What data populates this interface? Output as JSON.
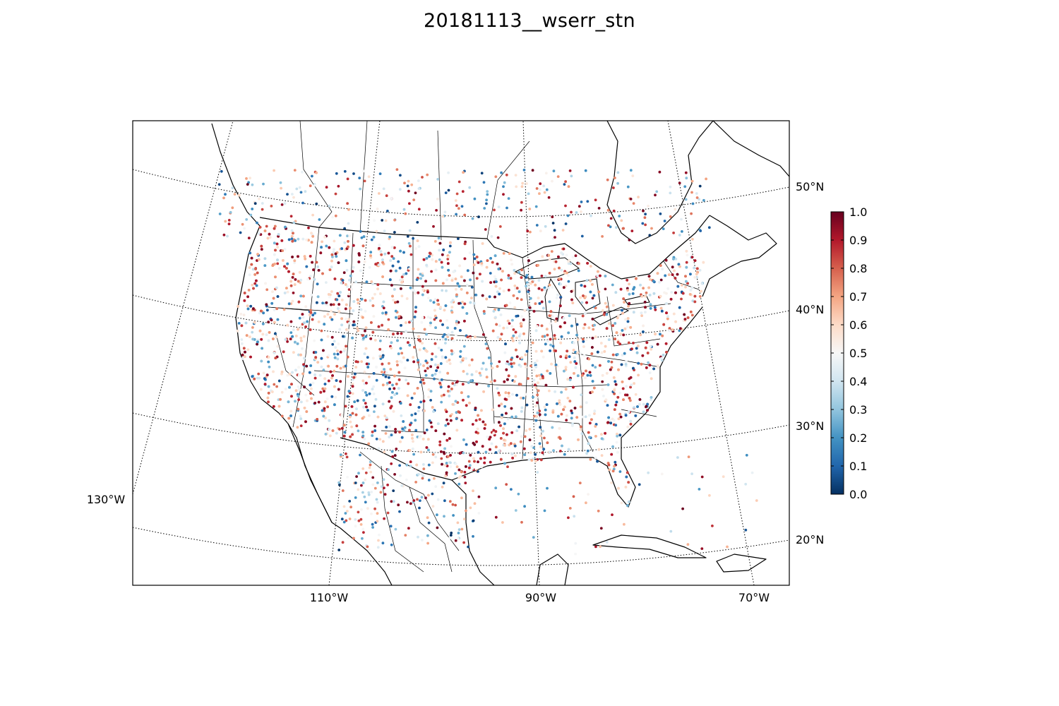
{
  "title": "20181113__wserr_stn",
  "map": {
    "lon_labels": [
      "110°W",
      "90°W",
      "70°W"
    ],
    "lon_label_left": "130°W",
    "lat_labels": [
      "50°N",
      "40°N",
      "30°N",
      "20°N"
    ],
    "coastline_color": "#000000",
    "graticule_style": "dotted",
    "station_count_estimate": 6000
  },
  "colorbar": {
    "colormap": "RdBu_r",
    "min": 0.0,
    "max": 1.0,
    "ticks": [
      "0.0",
      "0.1",
      "0.2",
      "0.3",
      "0.4",
      "0.5",
      "0.6",
      "0.7",
      "0.8",
      "0.9",
      "1.0"
    ],
    "stops": [
      "#053061",
      "#2166ac",
      "#4393c3",
      "#92c5de",
      "#d1e5f0",
      "#f7f7f7",
      "#fddbc7",
      "#f4a582",
      "#d6604d",
      "#b2182b",
      "#67001f"
    ]
  },
  "chart_data": {
    "type": "scatter",
    "title": "20181113__wserr_stn",
    "value_range": [
      0.0,
      1.0
    ],
    "x_ticks": [
      "110°W",
      "90°W",
      "70°W"
    ],
    "y_ticks": [
      "20°N",
      "30°N",
      "40°N",
      "50°N"
    ],
    "description": "station values colored 0–1 over CONUS, Canada and Mexico"
  }
}
